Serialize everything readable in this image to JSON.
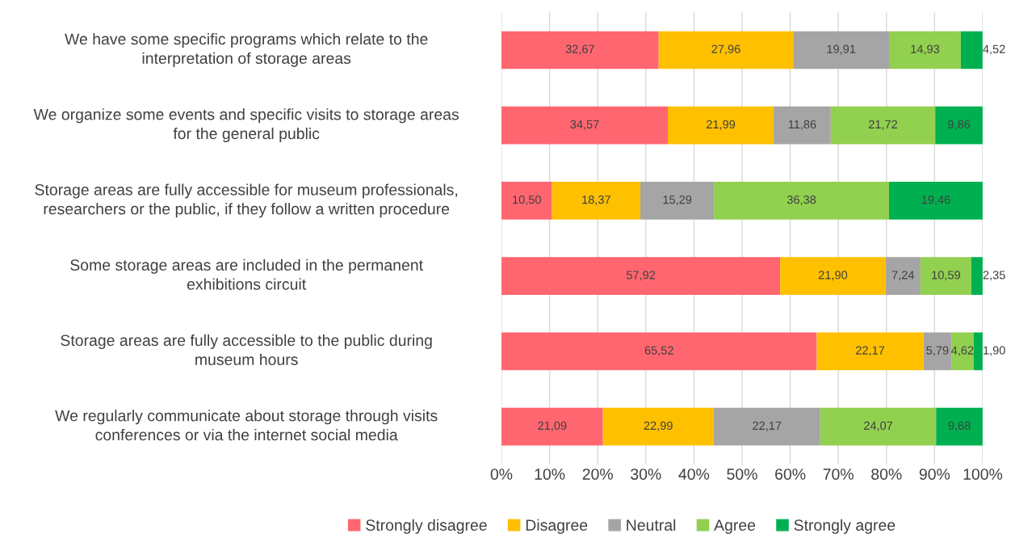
{
  "chart_data": {
    "type": "bar",
    "orientation": "horizontal",
    "stacked": true,
    "categories": [
      "We have some specific programs which relate to the\ninterpretation of storage areas",
      "We organize some events and specific visits to storage areas\nfor the general public",
      "Storage areas are fully accessible for museum professionals,\nresearchers or the public, if they follow a written procedure",
      "Some storage areas are included in the permanent\nexhibitions circuit",
      "Storage areas are fully accessible to the public during\nmuseum hours",
      "We regularly communicate about storage through visits\nconferences or via the internet social media"
    ],
    "series": [
      {
        "name": "Strongly disagree",
        "color": "#ff6670",
        "values": [
          32.67,
          34.57,
          10.5,
          57.92,
          65.52,
          21.09
        ],
        "value_labels": [
          "32,67",
          "34,57",
          "10,50",
          "57,92",
          "65,52",
          "21,09"
        ]
      },
      {
        "name": "Disagree",
        "color": "#ffc000",
        "values": [
          27.96,
          21.99,
          18.37,
          21.9,
          22.17,
          22.99
        ],
        "value_labels": [
          "27,96",
          "21,99",
          "18,37",
          "21,90",
          "22,17",
          "22,99"
        ]
      },
      {
        "name": "Neutral",
        "color": "#a5a5a5",
        "values": [
          19.91,
          11.86,
          15.29,
          7.24,
          5.79,
          22.17
        ],
        "value_labels": [
          "19,91",
          "11,86",
          "15,29",
          "7,24",
          "5,79",
          "22,17"
        ]
      },
      {
        "name": "Agree",
        "color": "#92d050",
        "values": [
          14.93,
          21.72,
          36.38,
          10.59,
          4.62,
          24.07
        ],
        "value_labels": [
          "14,93",
          "21,72",
          "36,38",
          "10,59",
          "4,62",
          "24,07"
        ]
      },
      {
        "name": "Strongly agree",
        "color": "#00b050",
        "values": [
          4.52,
          9.86,
          19.46,
          2.35,
          1.9,
          9.68
        ],
        "value_labels": [
          "4,52",
          "9,86",
          "19,46",
          "2,35",
          "1,90",
          "9,68"
        ]
      }
    ],
    "xlim": [
      0,
      100
    ],
    "xticks": [
      {
        "value": 0,
        "label": "0%"
      },
      {
        "value": 10,
        "label": "10%"
      },
      {
        "value": 20,
        "label": "20%"
      },
      {
        "value": 30,
        "label": "30%"
      },
      {
        "value": 40,
        "label": "40%"
      },
      {
        "value": 50,
        "label": "50%"
      },
      {
        "value": 60,
        "label": "60%"
      },
      {
        "value": 70,
        "label": "70%"
      },
      {
        "value": 80,
        "label": "80%"
      },
      {
        "value": 90,
        "label": "90%"
      },
      {
        "value": 100,
        "label": "100%"
      }
    ],
    "grid": "x",
    "legend": "bottom"
  }
}
